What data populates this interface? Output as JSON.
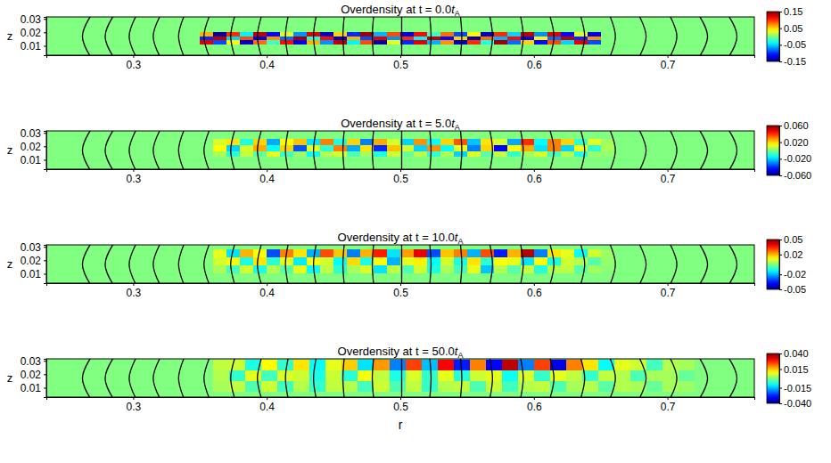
{
  "chart_data": [
    {
      "type": "heatmap",
      "title": "Overdensity at t = 0.0tA",
      "y_label": "z",
      "xlim": [
        0.235,
        0.765
      ],
      "ylim": [
        0.003,
        0.0315
      ],
      "xticks": [
        0.3,
        0.4,
        0.5,
        0.6,
        0.7
      ],
      "yticks": [
        0.01,
        0.02,
        0.03
      ],
      "x_edges": [
        0.35,
        0.36,
        0.37,
        0.38,
        0.39,
        0.4,
        0.41,
        0.42,
        0.43,
        0.44,
        0.45,
        0.46,
        0.47,
        0.48,
        0.49,
        0.5,
        0.51,
        0.52,
        0.53,
        0.54,
        0.55,
        0.56,
        0.57,
        0.58,
        0.59,
        0.6,
        0.61,
        0.62,
        0.63,
        0.64,
        0.65
      ],
      "z_edges": [
        0.011,
        0.014,
        0.017,
        0.02
      ],
      "values": [
        [
          0.12,
          -0.09,
          0.04,
          -0.13,
          0.08,
          -0.02,
          0.11,
          -0.12,
          0.06,
          -0.07,
          0.13,
          -0.04,
          0.09,
          -0.14,
          0.03,
          -0.1,
          0.12,
          -0.06,
          0.07,
          -0.13,
          0.1,
          -0.03,
          0.14,
          -0.08,
          0.05,
          -0.11,
          0.09,
          -0.05,
          0.12,
          -0.09
        ],
        [
          -0.1,
          0.13,
          -0.05,
          0.09,
          -0.12,
          0.07,
          -0.08,
          0.14,
          -0.03,
          0.11,
          -0.13,
          0.06,
          -0.09,
          0.12,
          -0.07,
          0.1,
          -0.04,
          0.13,
          -0.11,
          0.05,
          -0.14,
          0.08,
          -0.06,
          0.11,
          -0.12,
          0.04,
          -0.08,
          0.13,
          -0.1,
          0.07
        ],
        [
          0.06,
          -0.14,
          0.1,
          -0.04,
          0.13,
          -0.11,
          0.03,
          -0.07,
          0.12,
          -0.13,
          0.05,
          -0.1,
          0.14,
          -0.06,
          0.09,
          -0.12,
          0.11,
          -0.02,
          0.08,
          -0.09,
          0.04,
          -0.13,
          0.1,
          -0.05,
          0.13,
          -0.07,
          0.12,
          -0.11,
          0.03,
          -0.12
        ]
      ],
      "color_range": [
        -0.15,
        0.15
      ],
      "color_ticks": [
        0.15,
        0.05,
        -0.05,
        -0.15
      ],
      "field_lines": {
        "z": [
          0.002,
          0.017,
          0.032
        ],
        "r": [
          [
            0.268,
            0.262,
            0.268
          ],
          [
            0.285,
            0.279,
            0.285
          ],
          [
            0.302,
            0.297,
            0.302
          ],
          [
            0.32,
            0.315,
            0.32
          ],
          [
            0.338,
            0.334,
            0.338
          ],
          [
            0.357,
            0.353,
            0.357
          ],
          [
            0.376,
            0.373,
            0.376
          ],
          [
            0.396,
            0.393,
            0.396
          ],
          [
            0.416,
            0.414,
            0.416
          ],
          [
            0.437,
            0.435,
            0.437
          ],
          [
            0.458,
            0.457,
            0.458
          ],
          [
            0.48,
            0.479,
            0.48
          ],
          [
            0.501,
            0.501,
            0.501
          ],
          [
            0.522,
            0.523,
            0.522
          ],
          [
            0.545,
            0.546,
            0.545
          ],
          [
            0.567,
            0.569,
            0.567
          ],
          [
            0.59,
            0.592,
            0.59
          ],
          [
            0.612,
            0.615,
            0.612
          ],
          [
            0.635,
            0.638,
            0.635
          ],
          [
            0.657,
            0.661,
            0.657
          ],
          [
            0.679,
            0.684,
            0.679
          ],
          [
            0.702,
            0.707,
            0.702
          ],
          [
            0.724,
            0.73,
            0.724
          ],
          [
            0.746,
            0.752,
            0.746
          ]
        ]
      }
    },
    {
      "type": "heatmap",
      "title": "Overdensity at t = 5.0tA",
      "y_label": "z",
      "xlim": [
        0.235,
        0.765
      ],
      "ylim": [
        0.003,
        0.0315
      ],
      "xticks": [
        0.3,
        0.4,
        0.5,
        0.6,
        0.7
      ],
      "yticks": [
        0.01,
        0.02,
        0.03
      ],
      "x_edges": [
        0.36,
        0.37,
        0.38,
        0.39,
        0.4,
        0.41,
        0.42,
        0.43,
        0.44,
        0.45,
        0.46,
        0.47,
        0.48,
        0.49,
        0.5,
        0.51,
        0.52,
        0.53,
        0.54,
        0.55,
        0.56,
        0.57,
        0.58,
        0.59,
        0.6,
        0.61,
        0.62,
        0.63,
        0.64,
        0.65,
        0.66
      ],
      "z_edges": [
        0.012,
        0.0165,
        0.021,
        0.0255
      ],
      "values": [
        [
          0.005,
          -0.01,
          0.008,
          -0.004,
          0.012,
          -0.008,
          0.003,
          -0.015,
          0.006,
          0.01,
          -0.006,
          0.004,
          -0.012,
          0.009,
          -0.003,
          0.007,
          -0.01,
          0.005,
          -0.02,
          0.011,
          -0.005,
          0.008,
          -0.009,
          0.004,
          0.01,
          -0.007,
          0.006,
          -0.012,
          0.003,
          0.002
        ],
        [
          0.015,
          -0.02,
          0.01,
          0.025,
          -0.015,
          0.02,
          -0.035,
          0.012,
          -0.01,
          0.03,
          -0.025,
          0.018,
          -0.04,
          0.022,
          0.01,
          -0.02,
          0.028,
          -0.015,
          0.012,
          -0.03,
          0.02,
          -0.045,
          0.015,
          0.025,
          -0.018,
          0.03,
          -0.02,
          0.014,
          -0.01,
          0.005
        ],
        [
          0.01,
          0.018,
          -0.012,
          0.02,
          -0.025,
          0.015,
          0.022,
          -0.018,
          0.03,
          -0.012,
          0.02,
          -0.03,
          0.025,
          0.01,
          -0.02,
          0.028,
          -0.015,
          0.02,
          0.035,
          -0.022,
          0.018,
          0.01,
          -0.025,
          0.04,
          -0.015,
          0.03,
          0.02,
          -0.01,
          0.012,
          0.004
        ]
      ],
      "color_range": [
        -0.06,
        0.06
      ],
      "color_ticks": [
        {
          "value": 0.06,
          "label": "0.060"
        },
        {
          "value": 0.02,
          "label": "0.020"
        },
        {
          "value": -0.02,
          "label": "-0.020"
        },
        {
          "value": -0.06,
          "label": "-0.060"
        }
      ],
      "field_lines": {
        "z": [
          0.002,
          0.017,
          0.032
        ],
        "r": [
          [
            0.268,
            0.262,
            0.268
          ],
          [
            0.285,
            0.279,
            0.285
          ],
          [
            0.302,
            0.297,
            0.302
          ],
          [
            0.32,
            0.315,
            0.32
          ],
          [
            0.338,
            0.334,
            0.338
          ],
          [
            0.357,
            0.353,
            0.357
          ],
          [
            0.376,
            0.373,
            0.376
          ],
          [
            0.396,
            0.393,
            0.396
          ],
          [
            0.416,
            0.414,
            0.416
          ],
          [
            0.437,
            0.435,
            0.437
          ],
          [
            0.458,
            0.457,
            0.458
          ],
          [
            0.48,
            0.479,
            0.48
          ],
          [
            0.501,
            0.501,
            0.501
          ],
          [
            0.522,
            0.523,
            0.522
          ],
          [
            0.545,
            0.546,
            0.545
          ],
          [
            0.567,
            0.569,
            0.567
          ],
          [
            0.59,
            0.592,
            0.59
          ],
          [
            0.612,
            0.615,
            0.612
          ],
          [
            0.635,
            0.638,
            0.635
          ],
          [
            0.657,
            0.661,
            0.657
          ],
          [
            0.679,
            0.684,
            0.679
          ],
          [
            0.702,
            0.707,
            0.702
          ],
          [
            0.724,
            0.73,
            0.724
          ],
          [
            0.746,
            0.752,
            0.746
          ]
        ]
      }
    },
    {
      "type": "heatmap",
      "title": "Overdensity at t = 10.0tA",
      "y_label": "z",
      "xlim": [
        0.235,
        0.765
      ],
      "ylim": [
        0.003,
        0.0315
      ],
      "xticks": [
        0.3,
        0.4,
        0.5,
        0.6,
        0.7
      ],
      "yticks": [
        0.01,
        0.02,
        0.03
      ],
      "x_edges": [
        0.36,
        0.37,
        0.38,
        0.39,
        0.4,
        0.41,
        0.42,
        0.43,
        0.44,
        0.45,
        0.46,
        0.47,
        0.48,
        0.49,
        0.5,
        0.51,
        0.52,
        0.53,
        0.54,
        0.55,
        0.56,
        0.57,
        0.58,
        0.59,
        0.6,
        0.61,
        0.62,
        0.63,
        0.64,
        0.65,
        0.66
      ],
      "z_edges": [
        0.01,
        0.016,
        0.022,
        0.028
      ],
      "values": [
        [
          0.004,
          -0.006,
          0.008,
          -0.01,
          0.005,
          -0.004,
          0.01,
          -0.012,
          0.006,
          -0.008,
          0.004,
          0.009,
          -0.015,
          0.006,
          -0.005,
          0.008,
          -0.01,
          0.004,
          -0.006,
          0.01,
          -0.018,
          0.005,
          -0.004,
          0.007,
          -0.009,
          0.005,
          0.006,
          -0.004,
          0.003,
          0.001
        ],
        [
          0.008,
          0.012,
          -0.01,
          0.015,
          -0.008,
          0.01,
          -0.014,
          0.012,
          0.008,
          -0.012,
          0.016,
          -0.01,
          0.012,
          -0.02,
          0.01,
          0.014,
          -0.012,
          0.008,
          -0.01,
          0.015,
          -0.008,
          0.012,
          0.01,
          -0.015,
          0.012,
          -0.01,
          0.008,
          0.005,
          -0.004,
          0.002
        ],
        [
          0.01,
          -0.015,
          0.02,
          0.012,
          -0.03,
          0.025,
          0.015,
          -0.02,
          0.03,
          0.018,
          -0.025,
          0.02,
          0.035,
          -0.015,
          0.022,
          0.04,
          -0.03,
          0.018,
          0.025,
          -0.02,
          0.03,
          -0.035,
          0.02,
          0.045,
          -0.025,
          0.015,
          0.01,
          -0.012,
          0.008,
          0.003
        ]
      ],
      "color_range": [
        -0.05,
        0.05
      ],
      "color_ticks": [
        0.05,
        0.02,
        -0.02,
        -0.05
      ],
      "field_lines": {
        "z": [
          0.002,
          0.017,
          0.032
        ],
        "r": [
          [
            0.268,
            0.262,
            0.268
          ],
          [
            0.285,
            0.279,
            0.285
          ],
          [
            0.302,
            0.297,
            0.302
          ],
          [
            0.32,
            0.315,
            0.32
          ],
          [
            0.338,
            0.334,
            0.338
          ],
          [
            0.357,
            0.353,
            0.357
          ],
          [
            0.376,
            0.373,
            0.376
          ],
          [
            0.396,
            0.393,
            0.396
          ],
          [
            0.416,
            0.414,
            0.416
          ],
          [
            0.437,
            0.435,
            0.437
          ],
          [
            0.458,
            0.457,
            0.458
          ],
          [
            0.48,
            0.479,
            0.48
          ],
          [
            0.501,
            0.501,
            0.501
          ],
          [
            0.522,
            0.523,
            0.522
          ],
          [
            0.545,
            0.546,
            0.545
          ],
          [
            0.567,
            0.569,
            0.567
          ],
          [
            0.59,
            0.592,
            0.59
          ],
          [
            0.612,
            0.615,
            0.612
          ],
          [
            0.635,
            0.638,
            0.635
          ],
          [
            0.657,
            0.661,
            0.657
          ],
          [
            0.679,
            0.684,
            0.679
          ],
          [
            0.702,
            0.707,
            0.702
          ],
          [
            0.724,
            0.73,
            0.724
          ],
          [
            0.746,
            0.752,
            0.746
          ]
        ]
      }
    },
    {
      "type": "heatmap",
      "title": "Overdensity at t = 50.0tA",
      "x_label": "r",
      "y_label": "z",
      "xlim": [
        0.235,
        0.765
      ],
      "ylim": [
        0.003,
        0.0315
      ],
      "xticks": [
        0.3,
        0.4,
        0.5,
        0.6,
        0.7
      ],
      "yticks": [
        0.01,
        0.02,
        0.03
      ],
      "x_edges": [
        0.36,
        0.372,
        0.384,
        0.396,
        0.408,
        0.42,
        0.432,
        0.444,
        0.456,
        0.468,
        0.48,
        0.492,
        0.504,
        0.516,
        0.528,
        0.54,
        0.552,
        0.564,
        0.576,
        0.588,
        0.6,
        0.612,
        0.624,
        0.636,
        0.648,
        0.66,
        0.672,
        0.684,
        0.696,
        0.708,
        0.72
      ],
      "z_edges": [
        0.007,
        0.015,
        0.023,
        0.031
      ],
      "values": [
        [
          0.003,
          0.005,
          -0.004,
          0.006,
          -0.005,
          0.004,
          -0.006,
          0.005,
          0.004,
          -0.005,
          0.006,
          -0.004,
          0.005,
          -0.006,
          0.004,
          0.005,
          -0.004,
          0.006,
          -0.005,
          0.004,
          0.005,
          -0.004,
          0.003,
          0.004,
          -0.003,
          0.004,
          0.003,
          -0.002,
          0.003,
          0.002
        ],
        [
          0.004,
          -0.006,
          0.008,
          -0.005,
          0.007,
          0.006,
          -0.008,
          0.006,
          -0.007,
          0.009,
          0.005,
          -0.008,
          0.007,
          -0.006,
          0.008,
          -0.007,
          0.006,
          0.008,
          -0.009,
          0.007,
          -0.006,
          0.008,
          0.005,
          -0.006,
          0.005,
          0.004,
          -0.004,
          0.003,
          0.003,
          -0.002
        ],
        [
          0.005,
          0.006,
          -0.008,
          0.01,
          -0.006,
          0.012,
          -0.01,
          0.008,
          0.014,
          -0.012,
          0.018,
          -0.02,
          0.025,
          -0.015,
          0.03,
          -0.028,
          0.02,
          -0.03,
          0.035,
          -0.02,
          0.025,
          -0.032,
          0.02,
          0.012,
          -0.01,
          0.008,
          0.006,
          -0.005,
          0.004,
          0.003
        ]
      ],
      "color_range": [
        -0.04,
        0.04
      ],
      "color_ticks": [
        {
          "value": 0.04,
          "label": "0.040"
        },
        0.015,
        -0.015,
        {
          "value": -0.04,
          "label": "-0.040"
        }
      ],
      "field_lines": {
        "z": [
          0.002,
          0.017,
          0.032
        ],
        "r": [
          [
            0.268,
            0.262,
            0.268
          ],
          [
            0.285,
            0.279,
            0.285
          ],
          [
            0.302,
            0.297,
            0.302
          ],
          [
            0.32,
            0.315,
            0.32
          ],
          [
            0.338,
            0.334,
            0.338
          ],
          [
            0.357,
            0.353,
            0.357
          ],
          [
            0.376,
            0.373,
            0.376
          ],
          [
            0.396,
            0.393,
            0.396
          ],
          [
            0.416,
            0.414,
            0.416
          ],
          [
            0.437,
            0.435,
            0.437
          ],
          [
            0.458,
            0.457,
            0.458
          ],
          [
            0.48,
            0.479,
            0.48
          ],
          [
            0.501,
            0.501,
            0.501
          ],
          [
            0.522,
            0.523,
            0.522
          ],
          [
            0.545,
            0.546,
            0.545
          ],
          [
            0.567,
            0.569,
            0.567
          ],
          [
            0.59,
            0.592,
            0.59
          ],
          [
            0.612,
            0.615,
            0.612
          ],
          [
            0.635,
            0.638,
            0.635
          ],
          [
            0.657,
            0.661,
            0.657
          ],
          [
            0.679,
            0.684,
            0.679
          ],
          [
            0.702,
            0.707,
            0.702
          ],
          [
            0.724,
            0.73,
            0.724
          ],
          [
            0.746,
            0.752,
            0.746
          ]
        ]
      }
    }
  ]
}
